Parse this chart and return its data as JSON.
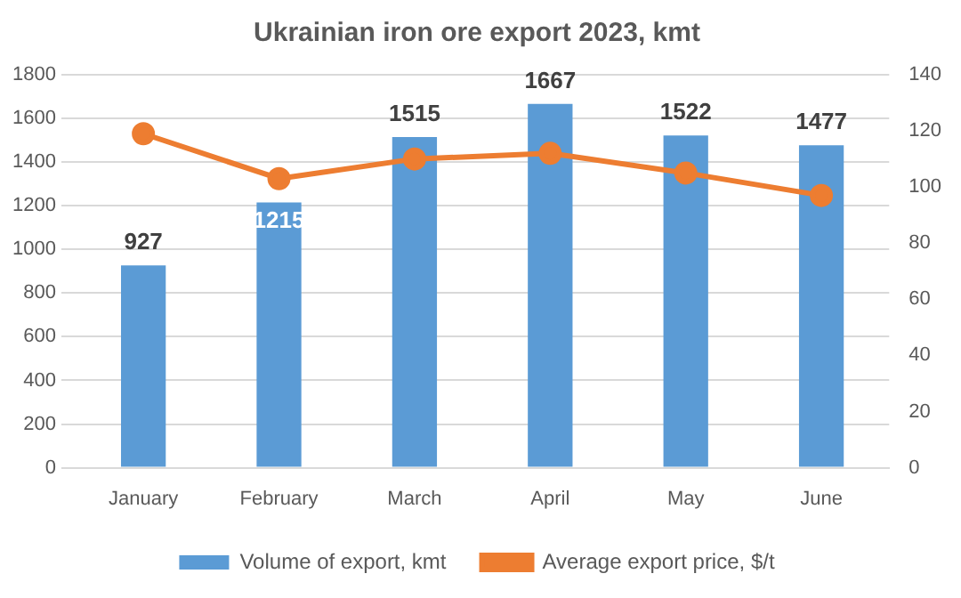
{
  "chart_data": {
    "type": "bar",
    "title": "Ukrainian iron ore export 2023, kmt",
    "categories": [
      "January",
      "February",
      "March",
      "April",
      "May",
      "June"
    ],
    "series": [
      {
        "name": "Volume of export, kmt",
        "color": "#5b9bd5",
        "values": [
          927,
          1215,
          1515,
          1667,
          1522,
          1477
        ],
        "value_labels": [
          "927",
          "1215",
          "1515",
          "1667",
          "1522",
          "1477"
        ]
      },
      {
        "name": "Average export price, $/t",
        "type": "line",
        "axis": "y2",
        "color": "#ed7d31",
        "marker": "circle",
        "values": [
          119,
          103,
          110,
          112,
          105,
          97
        ]
      }
    ],
    "ylim": [
      0,
      1800
    ],
    "yticks": [
      0,
      200,
      400,
      600,
      800,
      1000,
      1200,
      1400,
      1600,
      1800
    ],
    "y2lim": [
      0,
      140
    ],
    "y2ticks": [
      0,
      20,
      40,
      60,
      80,
      100,
      120,
      140
    ],
    "grid": "y",
    "legend": "bottom"
  }
}
